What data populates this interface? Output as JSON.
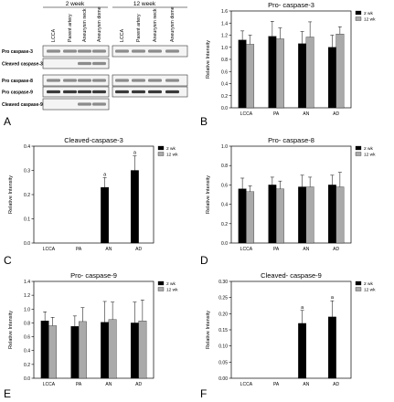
{
  "panel_letters": [
    "A",
    "B",
    "C",
    "D",
    "E",
    "F"
  ],
  "blot": {
    "groups": [
      "2 week",
      "12 week"
    ],
    "lanes": [
      "LCCA",
      "Parent artery",
      "Aneurysm neck",
      "Aneurysm dome",
      "LCCA",
      "Parent artery",
      "Aneurysm neck",
      "Aneurysm dome"
    ],
    "rows": [
      "Pro caspase-3",
      "Cleaved caspase-3",
      "Pro caspase-8",
      "Pro caspase-9",
      "Cleaved caspase-9"
    ]
  },
  "chart_data": [
    {
      "type": "bar",
      "title": "Pro- caspase-3",
      "ylabel": "Relative Intensity",
      "categories": [
        "LCCA",
        "PA",
        "AN",
        "AD"
      ],
      "ylim": [
        0,
        1.6
      ],
      "yticks": [
        "0.0",
        "0.2",
        "0.4",
        "0.6",
        "0.8",
        "1.0",
        "1.2",
        "1.4",
        "1.6"
      ],
      "legend": "top-right",
      "series": [
        {
          "name": "2 wk",
          "color": "#000000",
          "values": [
            1.12,
            1.18,
            1.06,
            1.0
          ],
          "errors": [
            0.15,
            0.25,
            0.2,
            0.2
          ]
        },
        {
          "name": "12 wk",
          "color": "#aaaaaa",
          "values": [
            1.05,
            1.14,
            1.17,
            1.22
          ],
          "errors": [
            0.15,
            0.18,
            0.25,
            0.12
          ]
        }
      ],
      "annotations": [
        "",
        "",
        "",
        ""
      ]
    },
    {
      "type": "bar",
      "title": "Cleaved-caspase-3",
      "ylabel": "Relative Intensity",
      "categories": [
        "LCCA",
        "PA",
        "AN",
        "AD"
      ],
      "ylim": [
        0,
        0.4
      ],
      "yticks": [
        "0.0",
        "0.1",
        "0.2",
        "0.3",
        "0.4"
      ],
      "legend": "top-right",
      "series": [
        {
          "name": "2 wk",
          "color": "#000000",
          "values": [
            0,
            0,
            0.23,
            0.3
          ],
          "errors": [
            0,
            0,
            0.04,
            0.06
          ]
        },
        {
          "name": "12 wk",
          "color": "#aaaaaa",
          "values": [
            0,
            0,
            0,
            0
          ],
          "errors": [
            0,
            0,
            0,
            0
          ]
        }
      ],
      "annotations": [
        "",
        "",
        "a",
        "a"
      ]
    },
    {
      "type": "bar",
      "title": "Pro- caspase-8",
      "ylabel": "Relative Intensity",
      "categories": [
        "LCCA",
        "PA",
        "AN",
        "AD"
      ],
      "ylim": [
        0,
        1.0
      ],
      "yticks": [
        "0.0",
        "0.2",
        "0.4",
        "0.6",
        "0.8",
        "1.0"
      ],
      "legend": "top-right",
      "series": [
        {
          "name": "2 wk",
          "color": "#000000",
          "values": [
            0.56,
            0.6,
            0.58,
            0.6
          ],
          "errors": [
            0.11,
            0.08,
            0.12,
            0.1
          ]
        },
        {
          "name": "12 wk",
          "color": "#aaaaaa",
          "values": [
            0.53,
            0.56,
            0.58,
            0.58
          ],
          "errors": [
            0.06,
            0.08,
            0.1,
            0.15
          ]
        }
      ],
      "annotations": [
        "",
        "",
        "",
        ""
      ]
    },
    {
      "type": "bar",
      "title": "Pro- caspase-9",
      "ylabel": "Relative Intensity",
      "categories": [
        "LCCA",
        "PA",
        "AN",
        "AD"
      ],
      "ylim": [
        0,
        1.4
      ],
      "yticks": [
        "0.0",
        "0.2",
        "0.4",
        "0.6",
        "0.8",
        "1.0",
        "1.2",
        "1.4"
      ],
      "legend": "top-right",
      "series": [
        {
          "name": "2 wk",
          "color": "#000000",
          "values": [
            0.83,
            0.75,
            0.81,
            0.8
          ],
          "errors": [
            0.13,
            0.15,
            0.3,
            0.3
          ]
        },
        {
          "name": "12 wk",
          "color": "#aaaaaa",
          "values": [
            0.76,
            0.82,
            0.85,
            0.83
          ],
          "errors": [
            0.12,
            0.2,
            0.25,
            0.3
          ]
        }
      ],
      "annotations": [
        "",
        "",
        "",
        ""
      ]
    },
    {
      "type": "bar",
      "title": "Cleaved- caspase-9",
      "ylabel": "Relative Intensity",
      "categories": [
        "LCCA",
        "PA",
        "AN",
        "AD"
      ],
      "ylim": [
        0,
        0.3
      ],
      "yticks": [
        "0.00",
        "0.05",
        "0.10",
        "0.15",
        "0.20",
        "0.25",
        "0.30"
      ],
      "legend": "top-right",
      "series": [
        {
          "name": "2 wk",
          "color": "#000000",
          "values": [
            0,
            0,
            0.17,
            0.19
          ],
          "errors": [
            0,
            0,
            0.04,
            0.05
          ]
        },
        {
          "name": "12 wk",
          "color": "#aaaaaa",
          "values": [
            0,
            0,
            0,
            0
          ],
          "errors": [
            0,
            0,
            0,
            0
          ]
        }
      ],
      "annotations": [
        "",
        "",
        "a",
        "a"
      ]
    }
  ]
}
